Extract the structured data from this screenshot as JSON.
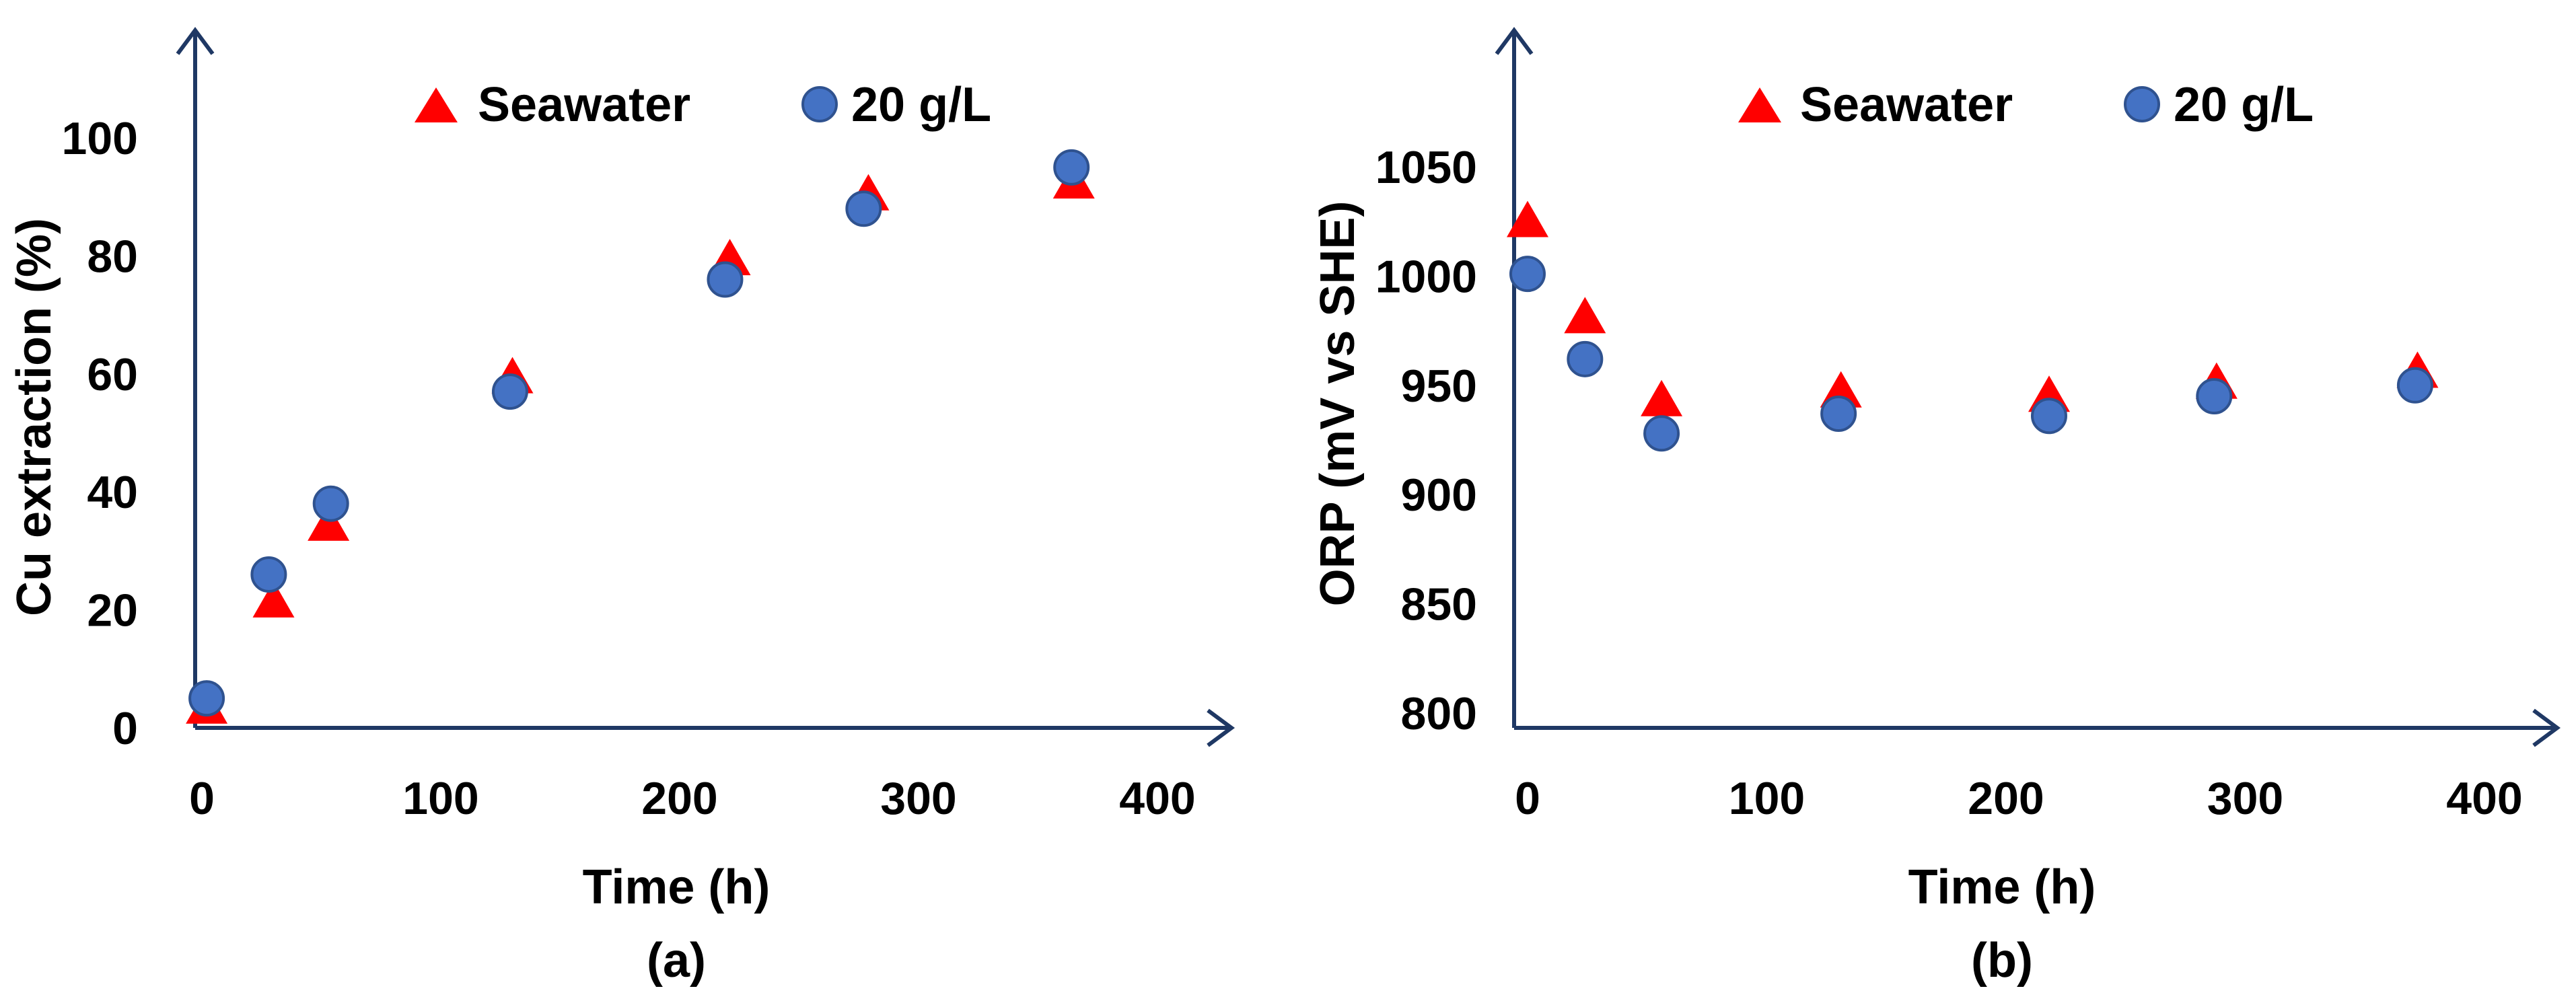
{
  "colors": {
    "axis": "#1F3864",
    "seawater": "#FF0000",
    "gL20_fill": "#4472C4",
    "gL20_stroke": "#2F528F"
  },
  "chart_data": [
    {
      "type": "scatter",
      "panel": "(a)",
      "xlabel": "Time (h)",
      "ylabel": "Cu extraction (%)",
      "xlim": [
        0,
        440
      ],
      "ylim": [
        0,
        120
      ],
      "xticks": [
        0,
        100,
        200,
        300,
        400
      ],
      "yticks": [
        0,
        20,
        40,
        60,
        80,
        100
      ],
      "legend": [
        "Seawater",
        "20 g/L"
      ],
      "series": [
        {
          "name": "Seawater",
          "marker": "triangle",
          "x": [
            2,
            30,
            53,
            130,
            221,
            279,
            365
          ],
          "y": [
            3,
            21,
            34,
            59,
            79,
            90,
            92
          ]
        },
        {
          "name": "20 g/L",
          "marker": "circle",
          "x": [
            2,
            28,
            54,
            129,
            219,
            277,
            364
          ],
          "y": [
            5,
            26,
            38,
            57,
            76,
            88,
            95
          ]
        }
      ]
    },
    {
      "type": "scatter",
      "panel": "(b)",
      "xlabel": "Time (h)",
      "ylabel": "ORP (mV vs SHE)",
      "xlim": [
        0,
        440
      ],
      "ylim": [
        790,
        1110
      ],
      "xticks": [
        0,
        100,
        200,
        300,
        400
      ],
      "yticks": [
        800,
        850,
        900,
        950,
        1000,
        1050
      ],
      "legend": [
        "Seawater",
        "20 g/L"
      ],
      "series": [
        {
          "name": "Seawater",
          "marker": "triangle",
          "x": [
            0,
            24,
            56,
            131,
            218,
            288,
            372
          ],
          "y": [
            1024,
            980,
            942,
            946,
            944,
            950,
            955
          ]
        },
        {
          "name": "20 g/L",
          "marker": "circle",
          "x": [
            0,
            24,
            56,
            130,
            218,
            287,
            371
          ],
          "y": [
            1001,
            962,
            928,
            937,
            936,
            945,
            950
          ]
        }
      ]
    }
  ]
}
